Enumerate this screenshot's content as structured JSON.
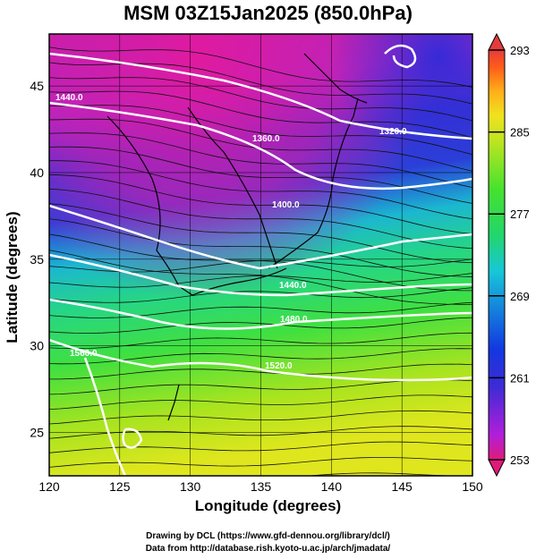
{
  "title": "MSM 03Z15Jan2025 (850.0hPa)",
  "map": {
    "x_axis": {
      "label": "Longitude (degrees)",
      "range": [
        120,
        150
      ],
      "ticks": [
        "120",
        "125",
        "130",
        "135",
        "140",
        "145",
        "150"
      ]
    },
    "y_axis": {
      "label": "Latitude  (degrees)",
      "range": [
        22.5,
        48
      ],
      "ticks": [
        "25",
        "30",
        "35",
        "40",
        "45"
      ]
    },
    "field": "temperature (K), shaded",
    "vectors": "wind streamlines",
    "contour_labels": [
      "1440.0",
      "1360.0",
      "1320.0",
      "1400.0",
      "1440.0",
      "1480.0",
      "1520.0",
      "1560.0"
    ]
  },
  "colorbar": {
    "ticks": [
      "293",
      "285",
      "277",
      "269",
      "261",
      "253"
    ],
    "colors": [
      "#e01a7a",
      "#b21fd9",
      "#3c2bd6",
      "#1238e0",
      "#17c7d8",
      "#22d66a",
      "#46e22e",
      "#bfe51f",
      "#f0e21f",
      "#ffae18",
      "#ff5a1a",
      "#e43c3c"
    ]
  },
  "credits": [
    "Drawing by DCL (https://www.gfd-dennou.org/library/dcl/)",
    "Data from http://database.rish.kyoto-u.ac.jp/arch/jmadata/"
  ]
}
